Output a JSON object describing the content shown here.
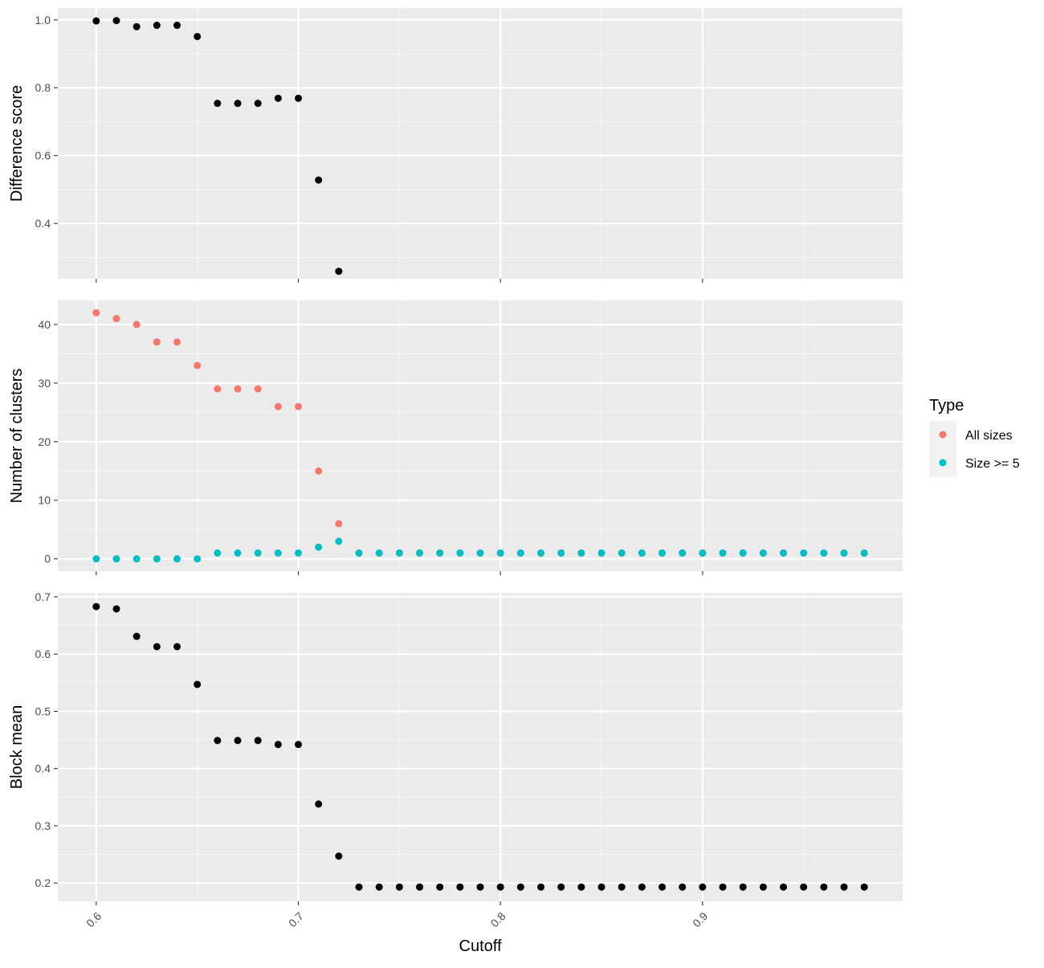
{
  "colors": {
    "panel_bg": "#EBEBEB",
    "grid_major": "#FFFFFF",
    "grid_minor": "#F5F5F5",
    "axis_text": "#4D4D4D",
    "tick": "#333333",
    "points_black": "#000000",
    "series_all_sizes": "#F8766D",
    "series_size5": "#00BFC4"
  },
  "legend": {
    "title": "Type",
    "position": "right",
    "items": [
      {
        "label": "All sizes",
        "color": "#F8766D"
      },
      {
        "label": "Size >= 5",
        "color": "#00BFC4"
      }
    ]
  },
  "xlabel": "Cutoff",
  "chart_data": [
    {
      "type": "scatter",
      "panel": "top",
      "ylabel": "Difference score",
      "xlim": [
        0.581,
        0.999
      ],
      "ylim": [
        0.237,
        1.035
      ],
      "xticks": [],
      "yticks": [
        "0.4",
        "0.6",
        "0.8",
        "1.0"
      ],
      "ytick_values": [
        0.4,
        0.6,
        0.8,
        1.0
      ],
      "grid": true,
      "series": [
        {
          "color": "#000000",
          "points": [
            [
              0.6,
              0.997
            ],
            [
              0.61,
              0.998
            ],
            [
              0.62,
              0.98
            ],
            [
              0.63,
              0.984
            ],
            [
              0.64,
              0.984
            ],
            [
              0.65,
              0.951
            ],
            [
              0.66,
              0.754
            ],
            [
              0.67,
              0.754
            ],
            [
              0.68,
              0.754
            ],
            [
              0.69,
              0.769
            ],
            [
              0.7,
              0.769
            ],
            [
              0.71,
              0.528
            ],
            [
              0.72,
              0.259
            ]
          ]
        }
      ]
    },
    {
      "type": "scatter",
      "panel": "middle",
      "ylabel": "Number of clusters",
      "xlim": [
        0.581,
        0.999
      ],
      "ylim": [
        -2.1,
        44.1
      ],
      "xticks": [],
      "yticks": [
        "0",
        "10",
        "20",
        "30",
        "40"
      ],
      "ytick_values": [
        0,
        10,
        20,
        30,
        40
      ],
      "grid": true,
      "series": [
        {
          "name": "All sizes",
          "color": "#F8766D",
          "points": [
            [
              0.6,
              42
            ],
            [
              0.61,
              41
            ],
            [
              0.62,
              40
            ],
            [
              0.63,
              37
            ],
            [
              0.64,
              37
            ],
            [
              0.65,
              33
            ],
            [
              0.66,
              29
            ],
            [
              0.67,
              29
            ],
            [
              0.68,
              29
            ],
            [
              0.69,
              26
            ],
            [
              0.7,
              26
            ],
            [
              0.71,
              15
            ],
            [
              0.72,
              6
            ],
            [
              0.73,
              1
            ],
            [
              0.74,
              1
            ],
            [
              0.75,
              1
            ],
            [
              0.76,
              1
            ],
            [
              0.77,
              1
            ],
            [
              0.78,
              1
            ],
            [
              0.79,
              1
            ],
            [
              0.8,
              1
            ],
            [
              0.81,
              1
            ],
            [
              0.82,
              1
            ],
            [
              0.83,
              1
            ],
            [
              0.84,
              1
            ],
            [
              0.85,
              1
            ],
            [
              0.86,
              1
            ],
            [
              0.87,
              1
            ],
            [
              0.88,
              1
            ],
            [
              0.89,
              1
            ],
            [
              0.9,
              1
            ],
            [
              0.91,
              1
            ],
            [
              0.92,
              1
            ],
            [
              0.93,
              1
            ],
            [
              0.94,
              1
            ],
            [
              0.95,
              1
            ],
            [
              0.96,
              1
            ],
            [
              0.97,
              1
            ],
            [
              0.98,
              1
            ]
          ]
        },
        {
          "name": "Size >= 5",
          "color": "#00BFC4",
          "points": [
            [
              0.6,
              0
            ],
            [
              0.61,
              0
            ],
            [
              0.62,
              0
            ],
            [
              0.63,
              0
            ],
            [
              0.64,
              0
            ],
            [
              0.65,
              0
            ],
            [
              0.66,
              1
            ],
            [
              0.67,
              1
            ],
            [
              0.68,
              1
            ],
            [
              0.69,
              1
            ],
            [
              0.7,
              1
            ],
            [
              0.71,
              2
            ],
            [
              0.72,
              3
            ],
            [
              0.73,
              1
            ],
            [
              0.74,
              1
            ],
            [
              0.75,
              1
            ],
            [
              0.76,
              1
            ],
            [
              0.77,
              1
            ],
            [
              0.78,
              1
            ],
            [
              0.79,
              1
            ],
            [
              0.8,
              1
            ],
            [
              0.81,
              1
            ],
            [
              0.82,
              1
            ],
            [
              0.83,
              1
            ],
            [
              0.84,
              1
            ],
            [
              0.85,
              1
            ],
            [
              0.86,
              1
            ],
            [
              0.87,
              1
            ],
            [
              0.88,
              1
            ],
            [
              0.89,
              1
            ],
            [
              0.9,
              1
            ],
            [
              0.91,
              1
            ],
            [
              0.92,
              1
            ],
            [
              0.93,
              1
            ],
            [
              0.94,
              1
            ],
            [
              0.95,
              1
            ],
            [
              0.96,
              1
            ],
            [
              0.97,
              1
            ],
            [
              0.98,
              1
            ]
          ]
        }
      ]
    },
    {
      "type": "scatter",
      "panel": "bottom",
      "ylabel": "Block mean",
      "xlim": [
        0.581,
        0.999
      ],
      "ylim": [
        0.168,
        0.707
      ],
      "xticks": [
        "0.6",
        "0.7",
        "0.8",
        "0.9"
      ],
      "xtick_values": [
        0.6,
        0.7,
        0.8,
        0.9
      ],
      "yticks": [
        "0.2",
        "0.3",
        "0.4",
        "0.5",
        "0.6",
        "0.7"
      ],
      "ytick_values": [
        0.2,
        0.3,
        0.4,
        0.5,
        0.6,
        0.7
      ],
      "grid": true,
      "series": [
        {
          "color": "#000000",
          "points": [
            [
              0.6,
              0.683
            ],
            [
              0.61,
              0.679
            ],
            [
              0.62,
              0.631
            ],
            [
              0.63,
              0.613
            ],
            [
              0.64,
              0.613
            ],
            [
              0.65,
              0.547
            ],
            [
              0.66,
              0.449
            ],
            [
              0.67,
              0.449
            ],
            [
              0.68,
              0.449
            ],
            [
              0.69,
              0.442
            ],
            [
              0.7,
              0.442
            ],
            [
              0.71,
              0.338
            ],
            [
              0.72,
              0.247
            ],
            [
              0.73,
              0.193
            ],
            [
              0.74,
              0.193
            ],
            [
              0.75,
              0.193
            ],
            [
              0.76,
              0.193
            ],
            [
              0.77,
              0.193
            ],
            [
              0.78,
              0.193
            ],
            [
              0.79,
              0.193
            ],
            [
              0.8,
              0.193
            ],
            [
              0.81,
              0.193
            ],
            [
              0.82,
              0.193
            ],
            [
              0.83,
              0.193
            ],
            [
              0.84,
              0.193
            ],
            [
              0.85,
              0.193
            ],
            [
              0.86,
              0.193
            ],
            [
              0.87,
              0.193
            ],
            [
              0.88,
              0.193
            ],
            [
              0.89,
              0.193
            ],
            [
              0.9,
              0.193
            ],
            [
              0.91,
              0.193
            ],
            [
              0.92,
              0.193
            ],
            [
              0.93,
              0.193
            ],
            [
              0.94,
              0.193
            ],
            [
              0.95,
              0.193
            ],
            [
              0.96,
              0.193
            ],
            [
              0.97,
              0.193
            ],
            [
              0.98,
              0.193
            ]
          ]
        }
      ]
    }
  ]
}
